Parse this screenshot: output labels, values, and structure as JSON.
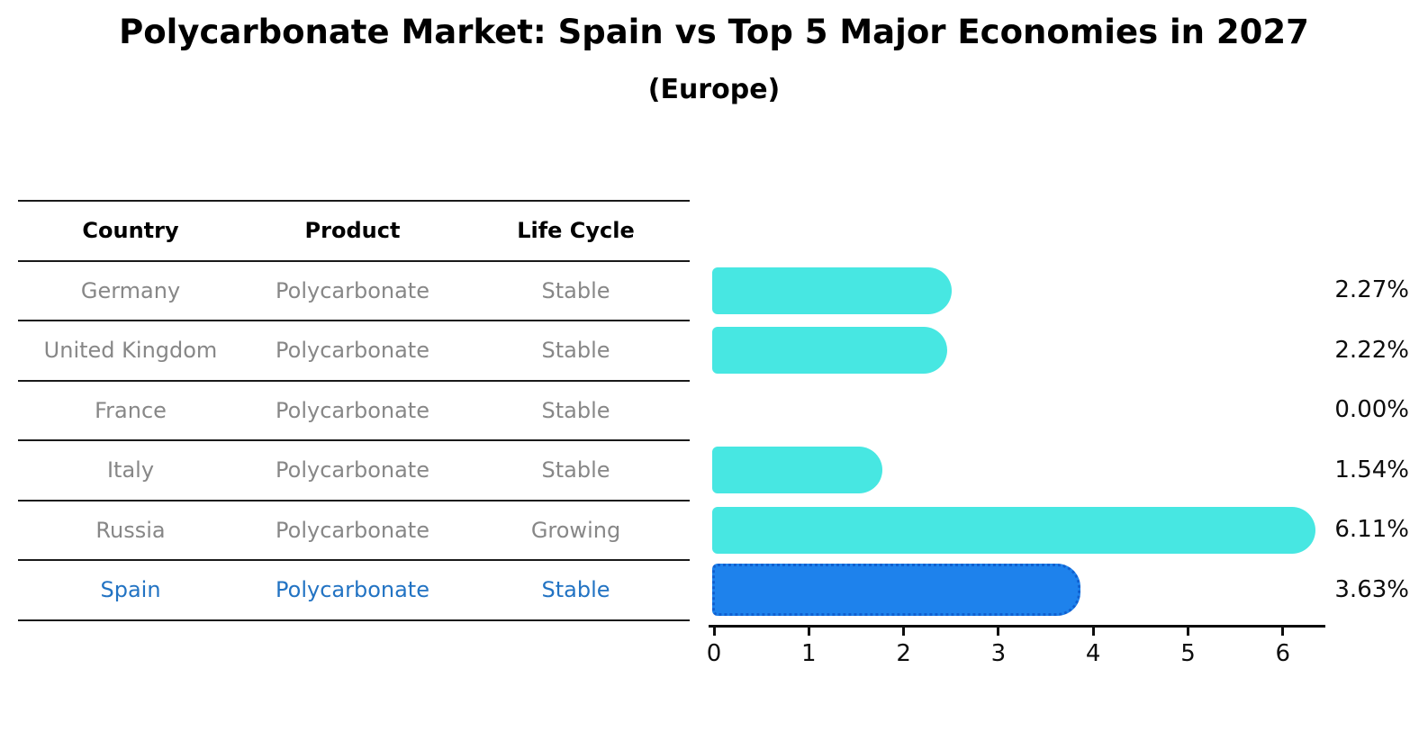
{
  "title": "Polycarbonate Market: Spain vs Top 5 Major Economies in 2027",
  "subtitle": "(Europe)",
  "table": {
    "headers": [
      "Country",
      "Product",
      "Life Cycle"
    ],
    "rows": [
      {
        "country": "Germany",
        "product": "Polycarbonate",
        "life_cycle": "Stable",
        "value_label": "2.27%",
        "highlight": false
      },
      {
        "country": "United Kingdom",
        "product": "Polycarbonate",
        "life_cycle": "Stable",
        "value_label": "2.22%",
        "highlight": false
      },
      {
        "country": "France",
        "product": "Polycarbonate",
        "life_cycle": "Stable",
        "value_label": "0.00%",
        "highlight": false
      },
      {
        "country": "Italy",
        "product": "Polycarbonate",
        "life_cycle": "Stable",
        "value_label": "1.54%",
        "highlight": false
      },
      {
        "country": "Russia",
        "product": "Polycarbonate",
        "life_cycle": "Growing",
        "value_label": "6.11%",
        "highlight": false
      },
      {
        "country": "Spain",
        "product": "Polycarbonate",
        "life_cycle": "Stable",
        "value_label": "3.63%",
        "highlight": true
      }
    ]
  },
  "chart_data": {
    "type": "bar",
    "orientation": "horizontal",
    "title": "Polycarbonate Market: Spain vs Top 5 Major Economies in 2027",
    "subtitle": "(Europe)",
    "categories": [
      "Germany",
      "United Kingdom",
      "France",
      "Italy",
      "Russia",
      "Spain"
    ],
    "values": [
      2.27,
      2.22,
      0.0,
      1.54,
      6.11,
      3.63
    ],
    "value_labels": [
      "2.27%",
      "2.22%",
      "0.00%",
      "1.54%",
      "6.11%",
      "3.63%"
    ],
    "xlabel": "",
    "ylabel": "",
    "xlim": [
      0,
      6.5
    ],
    "x_ticks": [
      0,
      1,
      2,
      3,
      4,
      5,
      6
    ],
    "grid": false,
    "legend": false,
    "highlight_category": "Spain"
  },
  "colors": {
    "bar_default": "#47e7e2",
    "bar_highlight": "#1e82ec",
    "bar_highlight_border": "#1060d0",
    "highlight_text": "#2273c3",
    "muted_text": "#878787",
    "axis_text": "#0d0d0d"
  }
}
